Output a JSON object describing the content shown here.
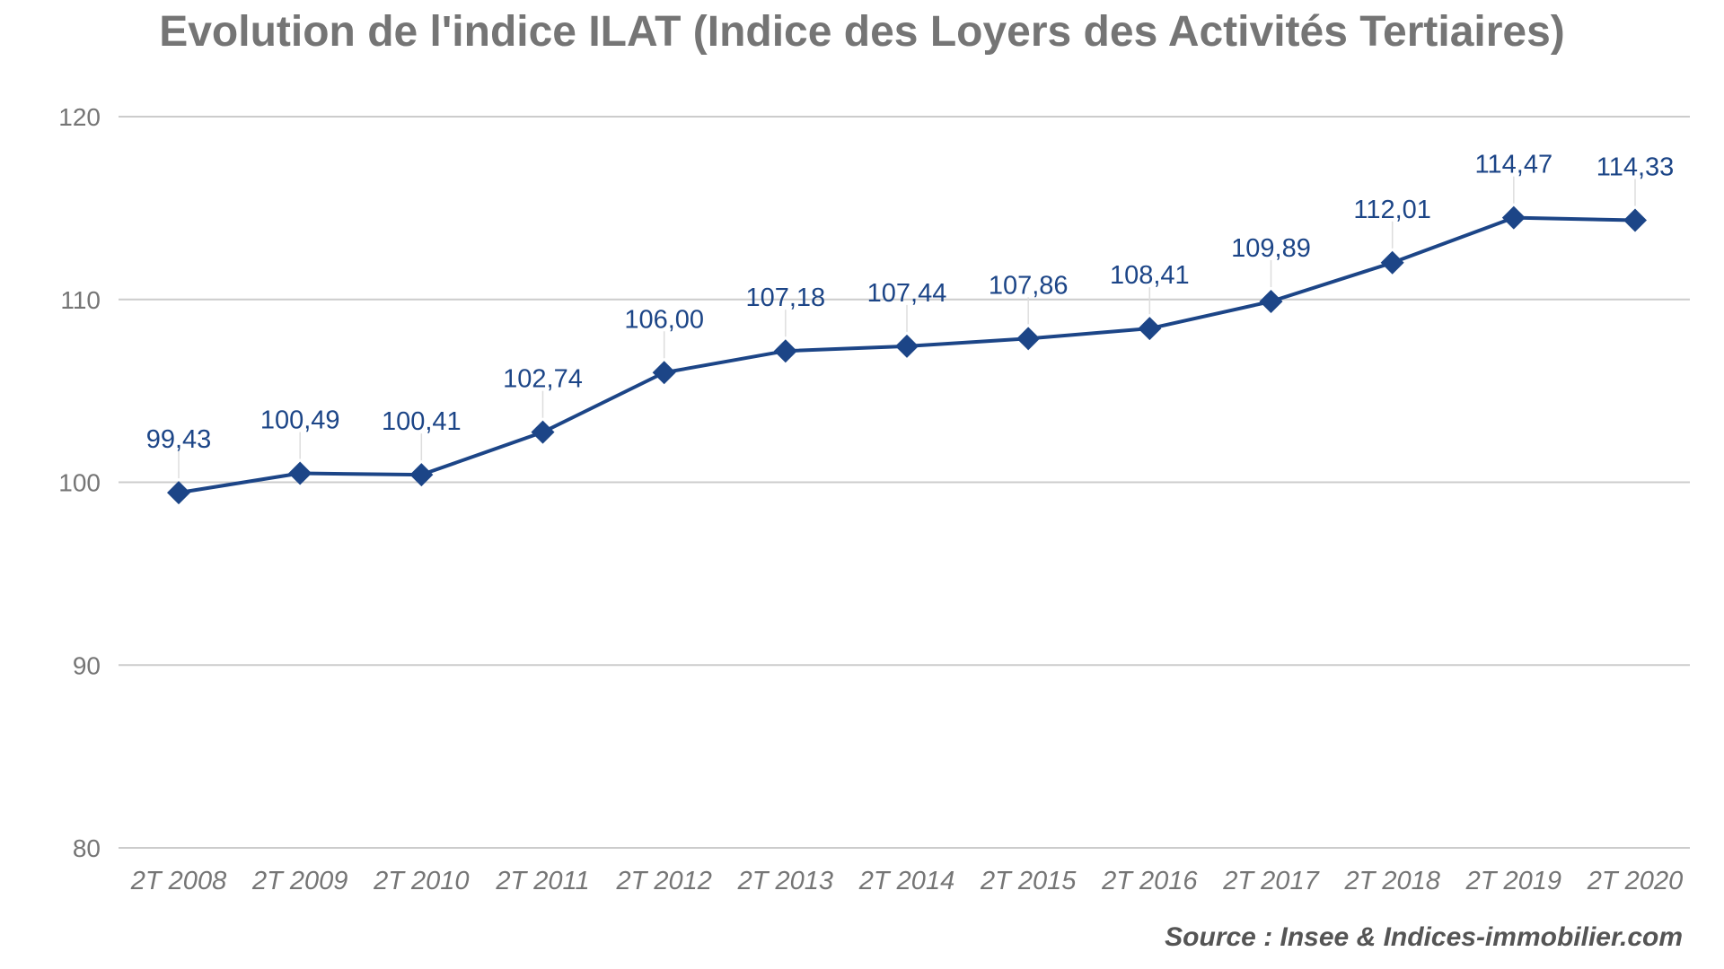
{
  "chart_data": {
    "type": "line",
    "title": "Evolution de l'indice ILAT (Indice des Loyers des Activités Tertiaires)",
    "xlabel": "",
    "ylabel": "",
    "categories": [
      "2T 2008",
      "2T 2009",
      "2T 2010",
      "2T 2011",
      "2T 2012",
      "2T 2013",
      "2T 2014",
      "2T 2015",
      "2T 2016",
      "2T 2017",
      "2T 2018",
      "2T 2019",
      "2T 2020"
    ],
    "series": [
      {
        "values": [
          99.43,
          100.49,
          100.41,
          102.74,
          106.0,
          107.18,
          107.44,
          107.86,
          108.41,
          109.89,
          112.01,
          114.47,
          114.33
        ],
        "labels": [
          "99,43",
          "100,49",
          "100,41",
          "102,74",
          "106,00",
          "107,18",
          "107,44",
          "107,86",
          "108,41",
          "109,89",
          "112,01",
          "114,47",
          "114,33"
        ],
        "color": "#1c4587",
        "marker": "diamond"
      }
    ],
    "ylim": [
      80,
      120
    ],
    "yticks": [
      80,
      90,
      100,
      110,
      120
    ],
    "ytick_labels": [
      "80",
      "90",
      "100",
      "110",
      "120"
    ],
    "grid": true,
    "legend": "none",
    "annotations": [
      "Source : Insee & Indices-immobilier.com"
    ]
  },
  "colors": {
    "series": "#1c4587",
    "title": "#757575",
    "axis_text": "#757575",
    "grid": "#cccccc",
    "source": "#555555"
  }
}
